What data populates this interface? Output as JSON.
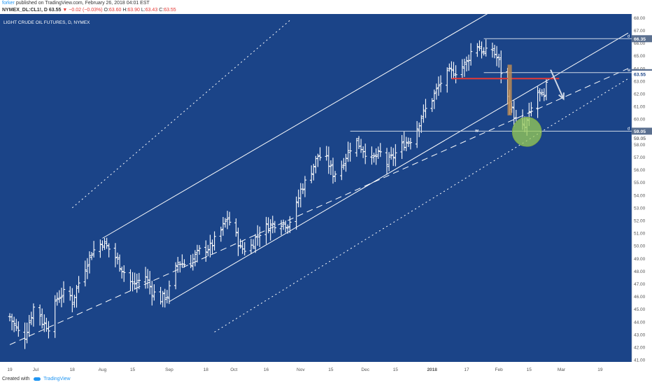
{
  "header": {
    "author": "forker",
    "published": "published on TradingView.com, February 26, 2018 04:01 EST",
    "symbol": "NYMEX_DL:CL1!, D",
    "last": "63.55",
    "change": "−0.02 (−0.03%)",
    "ohlc": [
      {
        "label": "O:",
        "value": "63.60"
      },
      {
        "label": "H:",
        "value": "63.90"
      },
      {
        "label": "L:",
        "value": "63.43"
      },
      {
        "label": "C:",
        "value": "63.55"
      }
    ]
  },
  "footer": {
    "created_with": "Created with",
    "brand": "TradingView"
  },
  "colors": {
    "background": "#1b4488",
    "axis_bg": "#ffffff",
    "bars": "#ffffff",
    "resistance_line": "#e53935",
    "box_fill": "#b98a55",
    "circle_fill": "#9acd55",
    "price_label_bg": "#5a6f8f",
    "current_label_bg": "#1b4488"
  },
  "chart_data": {
    "type": "ohlc",
    "title": "LIGHT CRUDE OIL FUTURES, D, NYMEX",
    "ylim": [
      41,
      68
    ],
    "y_ticks": [
      41,
      42,
      43,
      44,
      45,
      46,
      47,
      48,
      49,
      50,
      51,
      52,
      53,
      54,
      55,
      56,
      57,
      58,
      59,
      60,
      61,
      62,
      63,
      64,
      65,
      66,
      67,
      68
    ],
    "x_ticks": [
      {
        "label": "19",
        "day": 0,
        "bold": false
      },
      {
        "label": "Jul",
        "day": 12,
        "bold": false
      },
      {
        "label": "18",
        "day": 29,
        "bold": false
      },
      {
        "label": "Aug",
        "day": 43,
        "bold": false
      },
      {
        "label": "15",
        "day": 57,
        "bold": false
      },
      {
        "label": "Sep",
        "day": 74,
        "bold": false
      },
      {
        "label": "18",
        "day": 91,
        "bold": false
      },
      {
        "label": "Oct",
        "day": 104,
        "bold": false
      },
      {
        "label": "16",
        "day": 119,
        "bold": false
      },
      {
        "label": "Nov",
        "day": 135,
        "bold": false
      },
      {
        "label": "15",
        "day": 149,
        "bold": false
      },
      {
        "label": "Dec",
        "day": 165,
        "bold": false
      },
      {
        "label": "15",
        "day": 179,
        "bold": false
      },
      {
        "label": "2018",
        "day": 196,
        "bold": true
      },
      {
        "label": "17",
        "day": 212,
        "bold": false
      },
      {
        "label": "Feb",
        "day": 227,
        "bold": false
      },
      {
        "label": "15",
        "day": 241,
        "bold": false
      },
      {
        "label": "Mar",
        "day": 256,
        "bold": false
      },
      {
        "label": "19",
        "day": 274,
        "bold": false
      }
    ],
    "price_labels": [
      {
        "value": 66.35,
        "text": "66.35",
        "style": "level"
      },
      {
        "value": 63.67,
        "text": "63.67",
        "style": "level"
      },
      {
        "value": 63.55,
        "text": "63.55",
        "style": "current"
      },
      {
        "value": 59.05,
        "text": "59.05",
        "style": "level"
      },
      {
        "value": 59.05,
        "text": "59.05",
        "style": "sub"
      }
    ],
    "horizontal_levels": [
      {
        "from_day": 220,
        "value": 66.35,
        "tag": "d"
      },
      {
        "from_day": 220,
        "value": 63.67,
        "tag": "w"
      },
      {
        "from_day": 158,
        "value": 59.05,
        "tag": "d"
      }
    ],
    "w_marker": {
      "day": 216,
      "value": 59.0,
      "text": "w"
    },
    "resistance_line": {
      "from_day": 205,
      "to_day": 255,
      "value": 63.2
    },
    "box": {
      "from_day": 231,
      "to_day": 233,
      "high": 64.3,
      "low": 60.3
    },
    "circle": {
      "day": 240,
      "value": 59.0,
      "radius_value": 1.15
    },
    "arrow": {
      "from_day": 251,
      "from_value": 63.9,
      "to_day": 257,
      "to_value": 61.6
    },
    "channels": [
      {
        "from_day": 0,
        "from_value": 42.2,
        "to_day": 287,
        "to_value": 64.0,
        "style": "dashed"
      },
      {
        "from_day": 43,
        "from_value": 50.6,
        "to_day": 287,
        "to_value": 74.8,
        "style": "solid"
      },
      {
        "from_day": 74,
        "from_value": 45.6,
        "to_day": 287,
        "to_value": 66.8,
        "style": "solid"
      },
      {
        "from_day": 95,
        "from_value": 43.2,
        "to_day": 287,
        "to_value": 63.2,
        "style": "dotted"
      },
      {
        "from_day": 29,
        "from_value": 53.0,
        "to_day": 130,
        "to_value": 67.8,
        "style": "dotted"
      }
    ],
    "anchors": [
      {
        "day": 0,
        "value": 44.4
      },
      {
        "day": 4,
        "value": 43.2
      },
      {
        "day": 6,
        "value": 42.3
      },
      {
        "day": 12,
        "value": 45.7
      },
      {
        "day": 15,
        "value": 44.0
      },
      {
        "day": 18,
        "value": 43.6
      },
      {
        "day": 22,
        "value": 45.9
      },
      {
        "day": 27,
        "value": 46.5
      },
      {
        "day": 29,
        "value": 45.6
      },
      {
        "day": 33,
        "value": 47.6
      },
      {
        "day": 38,
        "value": 49.5
      },
      {
        "day": 43,
        "value": 50.3
      },
      {
        "day": 48,
        "value": 49.4
      },
      {
        "day": 52,
        "value": 48.2
      },
      {
        "day": 57,
        "value": 46.9
      },
      {
        "day": 63,
        "value": 47.6
      },
      {
        "day": 66,
        "value": 46.4
      },
      {
        "day": 70,
        "value": 45.8
      },
      {
        "day": 73,
        "value": 46.1
      },
      {
        "day": 78,
        "value": 48.7
      },
      {
        "day": 83,
        "value": 48.5
      },
      {
        "day": 88,
        "value": 49.6
      },
      {
        "day": 93,
        "value": 49.9
      },
      {
        "day": 98,
        "value": 51.2
      },
      {
        "day": 101,
        "value": 52.2
      },
      {
        "day": 104,
        "value": 51.3
      },
      {
        "day": 107,
        "value": 49.8
      },
      {
        "day": 111,
        "value": 49.7
      },
      {
        "day": 115,
        "value": 50.9
      },
      {
        "day": 119,
        "value": 51.5
      },
      {
        "day": 125,
        "value": 51.9
      },
      {
        "day": 129,
        "value": 51.7
      },
      {
        "day": 132,
        "value": 52.6
      },
      {
        "day": 135,
        "value": 54.4
      },
      {
        "day": 139,
        "value": 55.6
      },
      {
        "day": 143,
        "value": 57.1
      },
      {
        "day": 147,
        "value": 56.8
      },
      {
        "day": 150,
        "value": 55.7
      },
      {
        "day": 153,
        "value": 55.9
      },
      {
        "day": 156,
        "value": 57.1
      },
      {
        "day": 160,
        "value": 58.4
      },
      {
        "day": 164,
        "value": 57.6
      },
      {
        "day": 168,
        "value": 56.8
      },
      {
        "day": 172,
        "value": 57.3
      },
      {
        "day": 175,
        "value": 56.5
      },
      {
        "day": 179,
        "value": 57.3
      },
      {
        "day": 183,
        "value": 58.1
      },
      {
        "day": 187,
        "value": 58.5
      },
      {
        "day": 191,
        "value": 60.2
      },
      {
        "day": 196,
        "value": 61.6
      },
      {
        "day": 200,
        "value": 62.9
      },
      {
        "day": 204,
        "value": 63.7
      },
      {
        "day": 208,
        "value": 63.8
      },
      {
        "day": 212,
        "value": 64.5
      },
      {
        "day": 216,
        "value": 66.1
      },
      {
        "day": 220,
        "value": 65.2
      },
      {
        "day": 224,
        "value": 65.5
      },
      {
        "day": 227,
        "value": 64.5
      },
      {
        "day": 230,
        "value": 62.3
      },
      {
        "day": 232,
        "value": 61.1
      },
      {
        "day": 236,
        "value": 59.5
      },
      {
        "day": 239,
        "value": 59.3
      },
      {
        "day": 242,
        "value": 60.8
      },
      {
        "day": 245,
        "value": 62.1
      },
      {
        "day": 248,
        "value": 61.6
      },
      {
        "day": 250,
        "value": 63.6
      }
    ]
  }
}
